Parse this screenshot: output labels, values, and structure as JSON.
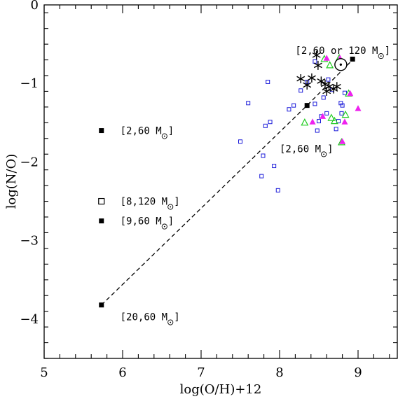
{
  "chart_data": {
    "type": "scatter",
    "title": "",
    "xlabel": "log(O/H)+12",
    "ylabel": "log(N/O)",
    "xlim": [
      5,
      9.5
    ],
    "ylim": [
      -4.5,
      0
    ],
    "x_ticks": [
      5,
      6,
      7,
      8,
      9
    ],
    "y_ticks": [
      0,
      -1,
      -2,
      -3,
      -4
    ],
    "x_tick_labels": [
      "5",
      "6",
      "7",
      "8",
      "9"
    ],
    "y_tick_labels": [
      "0",
      "−1",
      "−2",
      "−3",
      "−4"
    ],
    "grid": false,
    "colors": {
      "blue_squares": "#1a1ad9",
      "green_triangles": "#22cc22",
      "magenta_triangles": "#ee22ee",
      "black": "#000000"
    },
    "model_track": {
      "style": "dashed",
      "points": [
        [
          5.73,
          -3.82
        ],
        [
          8.35,
          -1.28
        ],
        [
          8.93,
          -0.7
        ]
      ]
    },
    "model_markers": {
      "marker": "filled-square",
      "points": [
        [
          5.73,
          -3.82
        ],
        [
          8.35,
          -1.28
        ],
        [
          8.93,
          -0.69
        ]
      ]
    },
    "sun": {
      "x": 8.78,
      "y": -0.76
    },
    "legend_markers": [
      {
        "marker": "filled-square",
        "x": 5.73,
        "y": -1.6
      },
      {
        "marker": "open-square",
        "x": 5.73,
        "y": -2.5
      },
      {
        "marker": "filled-square",
        "x": 5.73,
        "y": -2.75
      }
    ],
    "annotations": [
      {
        "id": "ann-2-60-left",
        "x": 5.97,
        "y": -1.6,
        "prefix": "[2,60 M",
        "suffix": "]"
      },
      {
        "id": "ann-8-120",
        "x": 5.97,
        "y": -2.5,
        "prefix": "[8,120 M",
        "suffix": "]"
      },
      {
        "id": "ann-9-60",
        "x": 5.97,
        "y": -2.75,
        "prefix": "[9,60 M",
        "suffix": "]"
      },
      {
        "id": "ann-20-60",
        "x": 5.97,
        "y": -3.97,
        "prefix": "[20,60 M",
        "suffix": "]"
      },
      {
        "id": "ann-2-60-mid",
        "x": 8.0,
        "y": -1.83,
        "prefix": "[2,60 M",
        "suffix": "]"
      },
      {
        "id": "ann-2-60-or-120",
        "x": 8.2,
        "y": -0.58,
        "prefix": "[2,60 or 120 M",
        "suffix": "]"
      }
    ],
    "blue_open_squares": [
      [
        7.5,
        -1.74
      ],
      [
        7.6,
        -1.25
      ],
      [
        7.77,
        -2.18
      ],
      [
        7.79,
        -1.92
      ],
      [
        7.82,
        -1.54
      ],
      [
        7.85,
        -0.98
      ],
      [
        7.88,
        -1.49
      ],
      [
        7.93,
        -2.05
      ],
      [
        7.98,
        -2.36
      ],
      [
        8.12,
        -1.33
      ],
      [
        8.18,
        -1.28
      ],
      [
        8.27,
        -1.09
      ],
      [
        8.35,
        -0.98
      ],
      [
        8.45,
        -0.72
      ],
      [
        8.45,
        -1.26
      ],
      [
        8.48,
        -1.6
      ],
      [
        8.5,
        -1.48
      ],
      [
        8.53,
        -1.42
      ],
      [
        8.56,
        -1.18
      ],
      [
        8.6,
        -1.38
      ],
      [
        8.62,
        -0.95
      ],
      [
        8.67,
        -1.08
      ],
      [
        8.72,
        -1.58
      ],
      [
        8.75,
        -1.48
      ],
      [
        8.78,
        -1.25
      ],
      [
        8.79,
        -1.38
      ],
      [
        8.8,
        -1.28
      ],
      [
        8.83,
        -1.12
      ]
    ],
    "green_open_triangles": [
      [
        8.32,
        -1.5
      ],
      [
        8.57,
        -0.69
      ],
      [
        8.64,
        -0.77
      ],
      [
        8.66,
        -1.44
      ],
      [
        8.7,
        -1.48
      ],
      [
        8.76,
        -0.68
      ],
      [
        8.79,
        -1.75
      ],
      [
        8.84,
        -1.4
      ],
      [
        8.88,
        -1.13
      ]
    ],
    "magenta_filled_triangles": [
      [
        8.42,
        -1.49
      ],
      [
        8.55,
        -1.42
      ],
      [
        8.6,
        -0.68
      ],
      [
        8.77,
        -0.68
      ],
      [
        8.8,
        -1.74
      ],
      [
        8.83,
        -1.49
      ],
      [
        8.9,
        -1.13
      ],
      [
        9.0,
        -1.32
      ]
    ],
    "black_stars": [
      [
        8.27,
        -0.94
      ],
      [
        8.35,
        -1.02
      ],
      [
        8.41,
        -0.93
      ],
      [
        8.47,
        -0.64
      ],
      [
        8.49,
        -0.77
      ],
      [
        8.53,
        -0.97
      ],
      [
        8.58,
        -1.01
      ],
      [
        8.6,
        -1.1
      ],
      [
        8.63,
        -1.04
      ],
      [
        8.69,
        -1.07
      ],
      [
        8.73,
        -1.04
      ]
    ]
  }
}
